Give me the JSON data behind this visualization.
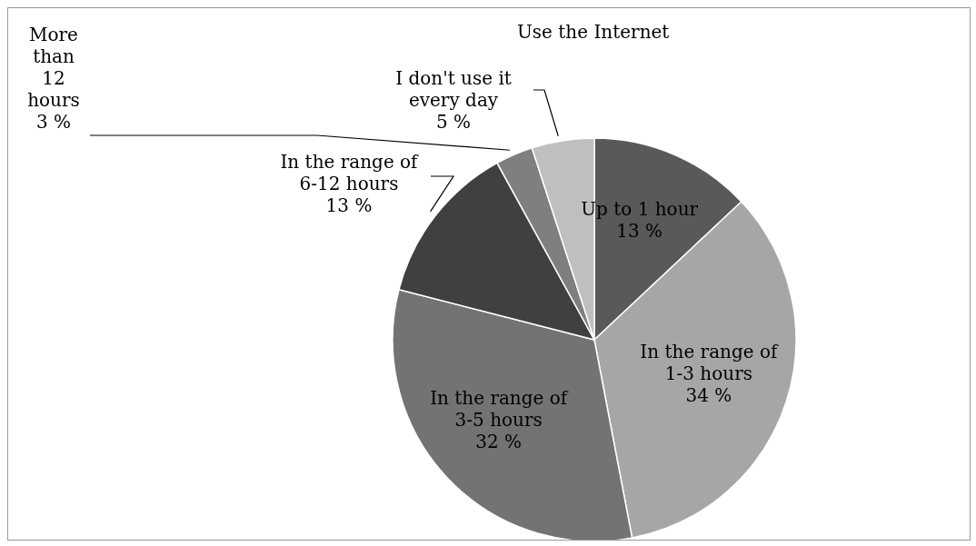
{
  "chart_data": {
    "type": "pie",
    "title": "Use the Internet",
    "categories": [
      "Up to 1 hour",
      "In the range of 1-3 hours",
      "In the range of 3-5 hours",
      "In the range of 6-12 hours",
      "More than 12 hours",
      "I don't use it every day"
    ],
    "values": [
      13,
      34,
      32,
      13,
      3,
      5
    ],
    "value_labels": [
      "13 %",
      "34 %",
      "32 %",
      "13 %",
      "3 %",
      "5 %"
    ],
    "colors": [
      "#595959",
      "#a6a6a6",
      "#737373",
      "#404040",
      "#7f7f7f",
      "#bfbfbf"
    ]
  }
}
